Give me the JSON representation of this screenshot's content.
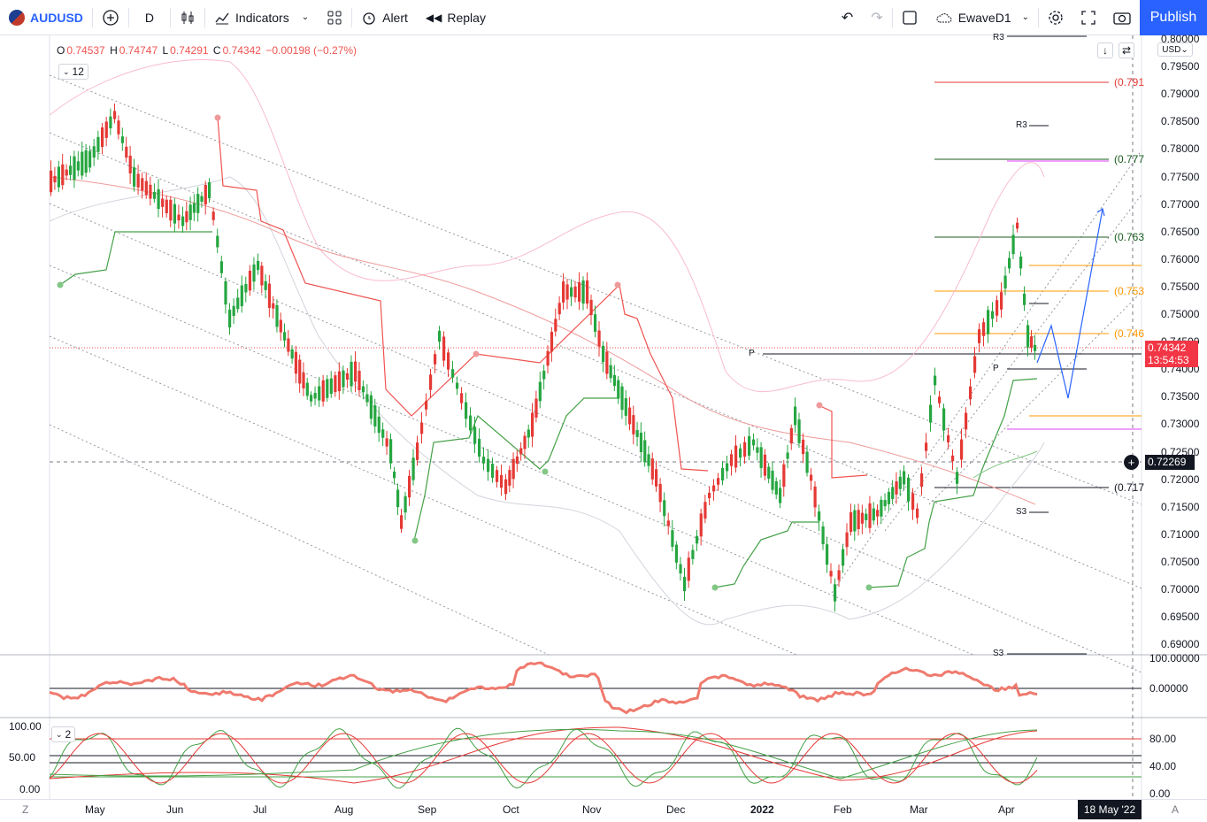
{
  "toolbar": {
    "symbol": "AUDUSD",
    "interval": "D",
    "indicators_label": "Indicators",
    "alert_label": "Alert",
    "replay_label": "Replay",
    "layout_name": "EwaveD1",
    "publish_label": "Publish"
  },
  "legend": {
    "open_k": "O",
    "open": "0.74537",
    "high_k": "H",
    "high": "0.74747",
    "low_k": "L",
    "low": "0.74291",
    "close_k": "C",
    "close": "0.74342",
    "change": "−0.00198 (−0.27%)",
    "indicator_count": "12"
  },
  "price_axis": {
    "currency": "USD",
    "labels": [
      "0.80000",
      "0.79500",
      "0.79000",
      "0.78500",
      "0.78000",
      "0.77500",
      "0.77000",
      "0.76500",
      "0.76000",
      "0.75500",
      "0.75000",
      "0.74500",
      "0.74000",
      "0.73500",
      "0.73000",
      "0.72500",
      "0.72000",
      "0.71500",
      "0.71000",
      "0.70500",
      "0.70000",
      "0.69500",
      "0.69000"
    ],
    "current_price": "0.74342",
    "countdown": "13:54:53",
    "crosshair_price": "0.72269"
  },
  "fib_labels": [
    "(0.791",
    "(0.777",
    "(0.763",
    "(0.753",
    "(0.746",
    "(0.717"
  ],
  "pivot_labels": [
    "R3",
    "R3",
    "P",
    "P",
    "S3",
    "S3"
  ],
  "oscillator": {
    "labels": [
      "100.00000",
      "0.00000"
    ]
  },
  "stoch": {
    "left_labels": [
      "100.00",
      "50.00",
      "0.00"
    ],
    "right_labels": [
      "80.00",
      "40.00",
      "0.00"
    ],
    "count": "2"
  },
  "time_axis": {
    "months": [
      "May",
      "Jun",
      "Jul",
      "Aug",
      "Sep",
      "Oct",
      "Nov",
      "Dec",
      "2022",
      "Feb",
      "Mar",
      "Apr"
    ],
    "cursor_date": "18 May '22",
    "left_btn": "Z",
    "right_btn": "A"
  },
  "colors": {
    "up": "#26a641",
    "down": "#e53935",
    "accent": "#2962ff"
  }
}
